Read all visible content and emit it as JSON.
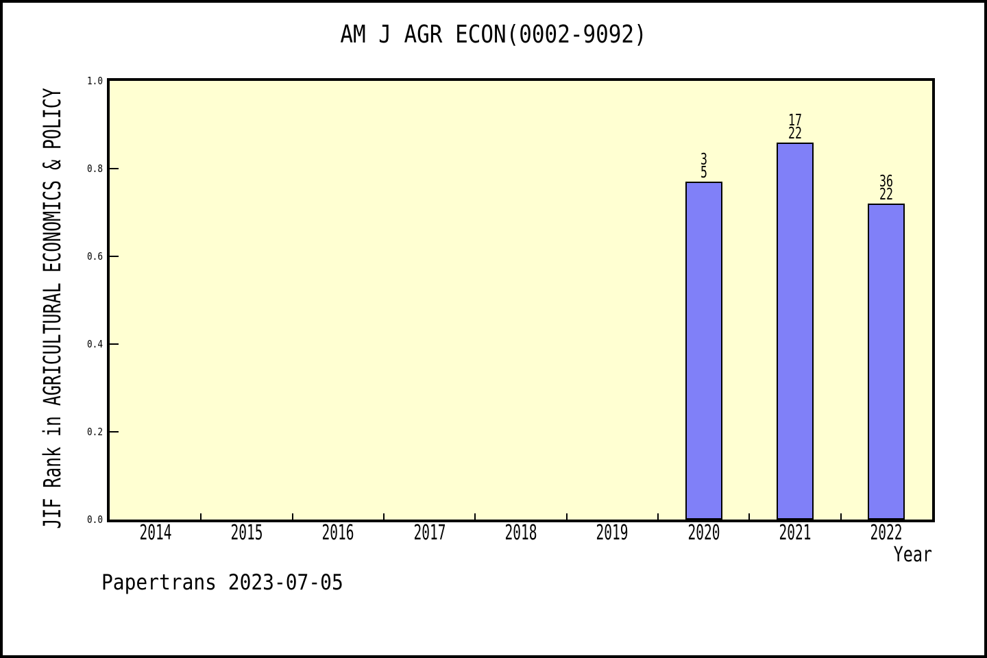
{
  "chart_data": {
    "type": "bar",
    "title": "AM J AGR ECON(0002-9092)",
    "xlabel": "Year",
    "ylabel": "JIF Rank in AGRICULTURAL ECONOMICS & POLICY",
    "categories": [
      "2014",
      "2015",
      "2016",
      "2017",
      "2018",
      "2019",
      "2020",
      "2021",
      "2022"
    ],
    "series": [
      {
        "name": "JIF Rank",
        "values": [
          null,
          null,
          null,
          null,
          null,
          null,
          0.77,
          0.86,
          0.72
        ]
      }
    ],
    "bar_annotations": [
      null,
      null,
      null,
      null,
      null,
      null,
      [
        "3",
        "5"
      ],
      [
        "17",
        "22"
      ],
      [
        "36",
        "22"
      ]
    ],
    "ytick_labels": [
      "0.0",
      "0.2",
      "0.4",
      "0.6",
      "0.8",
      "1.0"
    ],
    "yticks": [
      0.0,
      0.2,
      0.4,
      0.6,
      0.8,
      1.0
    ],
    "ylim": [
      0,
      1
    ],
    "grid": false,
    "legend_position": "none",
    "plot_background_color": "#FFFFD2",
    "bar_color": "#8080F8",
    "bar_border_color": "#000000",
    "frame_color": "#000000"
  },
  "footer": {
    "text": "Papertrans 2023-07-05"
  }
}
